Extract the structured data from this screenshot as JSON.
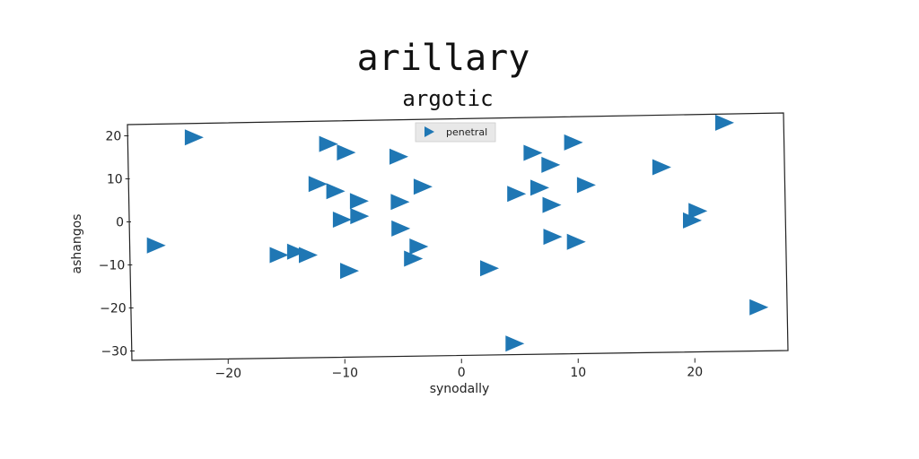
{
  "chart_data": {
    "type": "scatter",
    "title": "arillary",
    "subtitle": "argotic",
    "xlabel": "synodally",
    "ylabel": "ashangos",
    "xlim": [
      -28,
      28
    ],
    "ylim": [
      -32,
      24
    ],
    "xticks": [
      -20,
      -10,
      0,
      10,
      20
    ],
    "yticks": [
      -30,
      -20,
      -10,
      0,
      10,
      20
    ],
    "xtick_labels": [
      "−20",
      "−10",
      "0",
      "10",
      "20"
    ],
    "ytick_labels": [
      "−30",
      "−20",
      "−10",
      "0",
      "10",
      "20"
    ],
    "grid": false,
    "legend": {
      "placement": "top-center",
      "entries": [
        "penetral"
      ]
    },
    "marker": "triangle-right",
    "colors": {
      "series": "#1f77b4"
    },
    "series": [
      {
        "name": "penetral",
        "points": [
          [
            -22.5,
            19.6
          ],
          [
            23,
            22.7
          ],
          [
            -11,
            18
          ],
          [
            -9.5,
            16
          ],
          [
            -5,
            15
          ],
          [
            6.5,
            15.8
          ],
          [
            10,
            18.2
          ],
          [
            8,
            13
          ],
          [
            17.5,
            12.4
          ],
          [
            -12,
            8.7
          ],
          [
            -10.5,
            7
          ],
          [
            -3,
            8
          ],
          [
            -8.5,
            4.7
          ],
          [
            -5,
            4.5
          ],
          [
            5,
            6.3
          ],
          [
            7,
            7.7
          ],
          [
            11,
            8.3
          ],
          [
            8,
            3.7
          ],
          [
            -10,
            0.4
          ],
          [
            -8.5,
            1.2
          ],
          [
            20.5,
            2.2
          ],
          [
            20,
            0
          ],
          [
            -5,
            -1.7
          ],
          [
            8,
            -3.7
          ],
          [
            10,
            -4.9
          ],
          [
            -3.5,
            -5.9
          ],
          [
            -26,
            -5.5
          ],
          [
            -15.5,
            -7.8
          ],
          [
            -14,
            -7
          ],
          [
            -13,
            -7.8
          ],
          [
            -4,
            -8.7
          ],
          [
            -9.5,
            -11.5
          ],
          [
            2.5,
            -11
          ],
          [
            25.5,
            -20.2
          ],
          [
            4.5,
            -28.5
          ]
        ]
      }
    ]
  }
}
